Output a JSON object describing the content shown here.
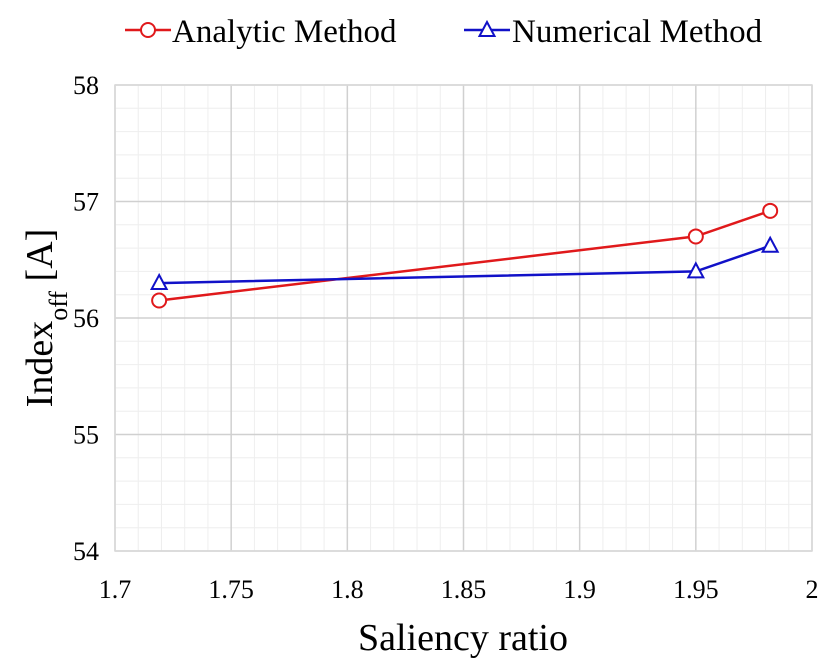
{
  "chart_data": {
    "type": "line",
    "xlabel": "Saliency ratio",
    "ylabel_main": "Index",
    "ylabel_sub": "off",
    "ylabel_unit": " [A]",
    "xlim": [
      1.7,
      2.0
    ],
    "ylim": [
      54,
      58
    ],
    "x_ticks": [
      1.7,
      1.75,
      1.8,
      1.85,
      1.9,
      1.95,
      2.0
    ],
    "x_tick_labels": [
      "1.7",
      "1.75",
      "1.8",
      "1.85",
      "1.9",
      "1.95",
      "2"
    ],
    "y_ticks": [
      54,
      55,
      56,
      57,
      58
    ],
    "y_tick_labels": [
      "54",
      "55",
      "56",
      "57",
      "58"
    ],
    "grid": true,
    "legend_position": "top",
    "series": [
      {
        "name": "Analytic Method",
        "color": "#e0191b",
        "marker": "circle",
        "x": [
          1.719,
          1.95,
          1.982
        ],
        "y": [
          56.15,
          56.7,
          56.92
        ]
      },
      {
        "name": "Numerical Method",
        "color": "#1111c8",
        "marker": "triangle",
        "x": [
          1.719,
          1.95,
          1.982
        ],
        "y": [
          56.3,
          56.4,
          56.62
        ]
      }
    ]
  }
}
